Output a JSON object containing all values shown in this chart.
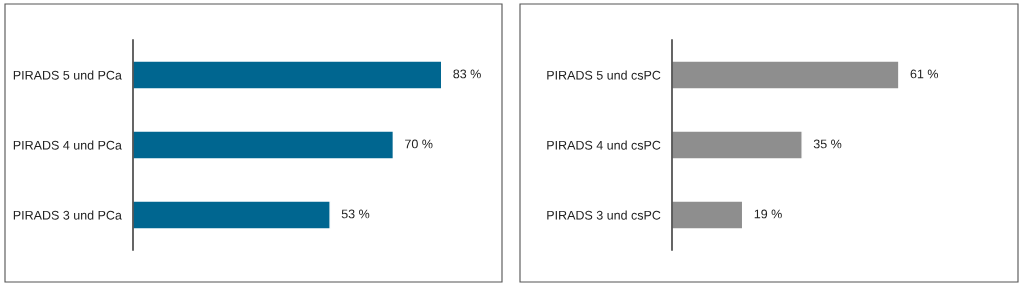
{
  "chart_data": [
    {
      "type": "bar",
      "orientation": "horizontal",
      "categories": [
        "PIRADS 5 und PCa",
        "PIRADS 4 und PCa",
        "PIRADS 3 und PCa"
      ],
      "values": [
        83,
        70,
        53
      ],
      "color": "#006690",
      "value_labels": [
        "83 %",
        "70 %",
        "53 %"
      ]
    },
    {
      "type": "bar",
      "orientation": "horizontal",
      "categories": [
        "PIRADS 5 und csPC",
        "PIRADS 4 und csPC",
        "PIRADS 3 und csPC"
      ],
      "values": [
        61,
        35,
        19
      ],
      "color": "#8e8e8e",
      "value_labels": [
        "61 %",
        "35 %",
        "19 %"
      ]
    }
  ]
}
